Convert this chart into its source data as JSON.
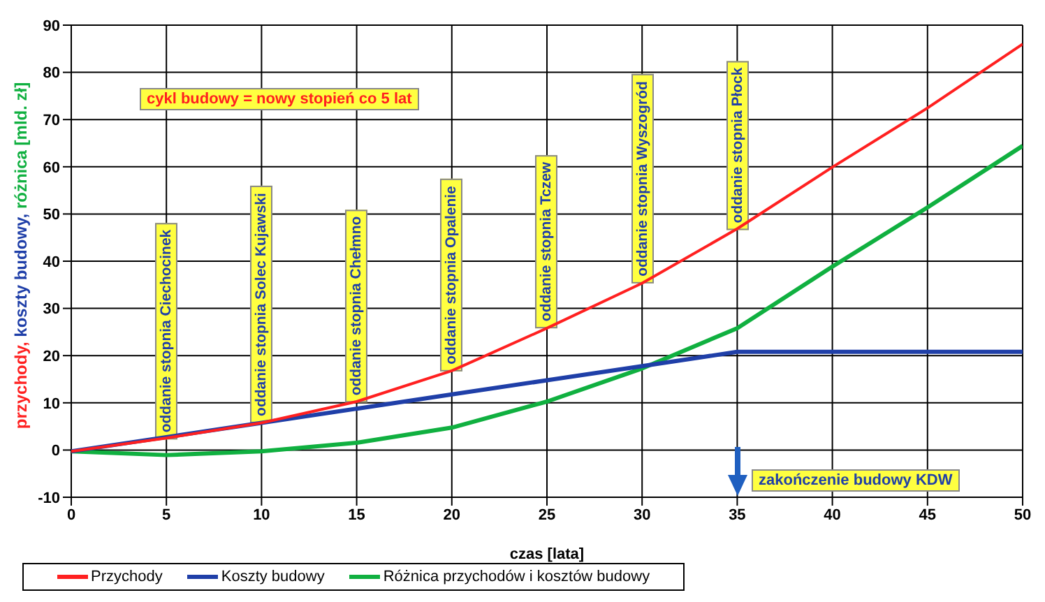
{
  "chart_data": {
    "type": "line",
    "xlabel": "czas [lata]",
    "ylabel": "przychody, koszty budowy, różnica [mld. zł]",
    "x": [
      0,
      5,
      10,
      15,
      20,
      25,
      30,
      35,
      40,
      45,
      50
    ],
    "series": [
      {
        "name": "Przychody",
        "color": "#ff2020",
        "values": [
          0,
          2.8,
          6,
          10.5,
          17,
          26,
          35.5,
          47,
          60,
          72.5,
          86
        ]
      },
      {
        "name": "Koszty budowy",
        "color": "#1f3fa8",
        "values": [
          0,
          3,
          6,
          9,
          12,
          15,
          18,
          21,
          21,
          21,
          21
        ]
      },
      {
        "name": "Różnica przychodów i kosztów budowy",
        "color": "#10b040",
        "values": [
          0,
          -0.8,
          0,
          1.8,
          5,
          10.5,
          17.5,
          26,
          39,
          51.5,
          64.5
        ]
      }
    ],
    "xlim": [
      0,
      50
    ],
    "xticks": [
      0,
      5,
      10,
      15,
      20,
      25,
      30,
      35,
      40,
      45,
      50
    ],
    "ylim": [
      -10,
      90
    ],
    "yticks": [
      -10,
      0,
      10,
      20,
      30,
      40,
      50,
      60,
      70,
      80,
      90
    ],
    "grid": true,
    "legend": "bottom",
    "marker": "none",
    "line_style": "solid",
    "annotations": [
      "cykl budowy = nowy stopień co 5 lat",
      "oddanie stopnia Ciechocinek",
      "oddanie stopnia Solec Kujawski",
      "oddanie stopnia Chełmno",
      "oddanie stopnia Opalenie",
      "oddanie stopnia Tczew",
      "oddanie stopnia Wyszogród",
      "oddanie stopnia Płock",
      "zakończenie budowy KDW"
    ]
  }
}
